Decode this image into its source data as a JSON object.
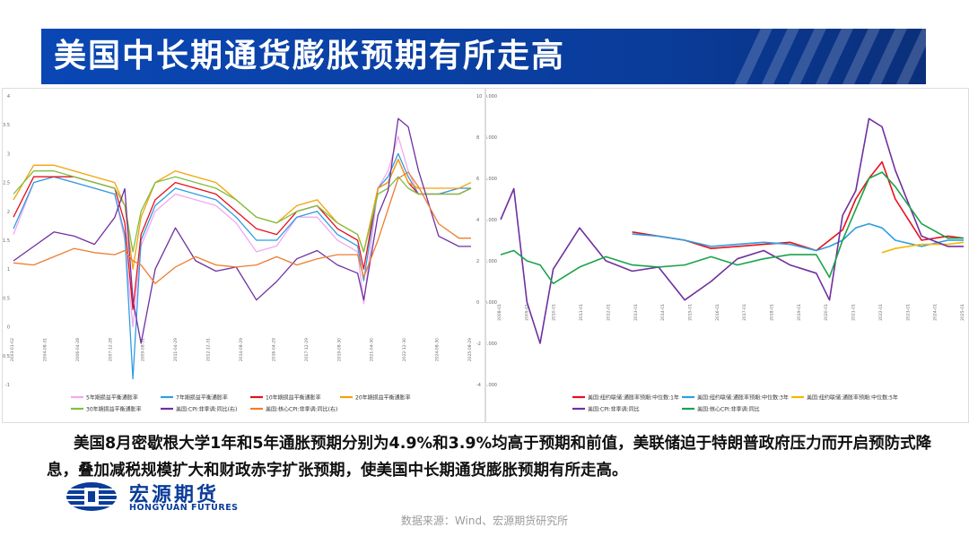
{
  "header": {
    "title": "美国中长期通货膨胀预期有所走高"
  },
  "caption": "美国8月密歇根大学1年和5年通胀预期分别为4.9%和3.9%均高于预期和前值，美联储迫于特朗普政府压力而开启预防式降息，叠加减税规模扩大和财政赤字扩张预期，使美国中长期通货膨胀预期有所走高。",
  "logo": {
    "name_cn": "宏源期货",
    "name_en": "HONGYUAN FUTURES"
  },
  "source": "数据来源：Wind、宏源期货研究所",
  "colors": {
    "title_bg": "#0a47b4",
    "logo": "#0a3c9a"
  },
  "chart_data": [
    {
      "type": "line",
      "left_axis": {
        "ticks": [
          "4",
          "3.5",
          "3",
          "2.5",
          "2",
          "1.5",
          "1",
          "0.5",
          "0",
          "-0.5",
          "-1"
        ],
        "ylim": [
          -1,
          4
        ]
      },
      "right_axis": {
        "ticks": [
          "10",
          "8",
          "6",
          "4",
          "2",
          "0",
          "-2",
          "-4"
        ],
        "ylim": [
          -4,
          10
        ]
      },
      "x_ticks": [
        "2003-01-02",
        "2004-08-31",
        "2006-04-28",
        "2007-12-28",
        "2009-08-31",
        "2011-04-29",
        "2012-12-31",
        "2014-08-29",
        "2016-04-29",
        "2017-12-29",
        "2019-08-30",
        "2021-04-30",
        "2022-12-30",
        "2024-08-30",
        "2025-08-29"
      ],
      "x": [
        2003,
        2004,
        2005,
        2006,
        2007,
        2008,
        2008.5,
        2008.9,
        2009.3,
        2010,
        2011,
        2012,
        2013,
        2014,
        2015,
        2016,
        2017,
        2018,
        2019,
        2020,
        2020.3,
        2021,
        2021.5,
        2022,
        2022.5,
        2023,
        2024,
        2025,
        2025.6
      ],
      "series": [
        {
          "name": "5年期损益平衡通胀率",
          "axis": "left",
          "color": "#f2a8f0",
          "values": [
            1.6,
            2.5,
            2.6,
            2.5,
            2.4,
            2.3,
            1.5,
            0.0,
            1.4,
            2.0,
            2.3,
            2.2,
            2.1,
            1.8,
            1.3,
            1.4,
            1.9,
            1.9,
            1.5,
            1.3,
            0.4,
            2.4,
            2.7,
            3.3,
            2.7,
            2.3,
            2.3,
            2.4,
            2.4
          ]
        },
        {
          "name": "7年期损益平衡通胀率",
          "axis": "left",
          "color": "#2e9ee0",
          "values": [
            1.7,
            2.5,
            2.6,
            2.5,
            2.4,
            2.3,
            1.6,
            -0.9,
            1.5,
            2.1,
            2.4,
            2.3,
            2.2,
            1.9,
            1.5,
            1.5,
            1.9,
            2.0,
            1.6,
            1.4,
            0.8,
            2.4,
            2.6,
            3.0,
            2.6,
            2.3,
            2.3,
            2.4,
            2.4
          ]
        },
        {
          "name": "10年期损益平衡通胀率",
          "axis": "left",
          "color": "#e8101c",
          "values": [
            1.9,
            2.6,
            2.6,
            2.6,
            2.5,
            2.4,
            1.8,
            0.3,
            1.6,
            2.2,
            2.5,
            2.4,
            2.3,
            2.0,
            1.7,
            1.6,
            2.0,
            2.1,
            1.7,
            1.5,
            1.0,
            2.4,
            2.5,
            2.9,
            2.5,
            2.3,
            2.3,
            2.3,
            2.4
          ]
        },
        {
          "name": "20年期损益平衡通胀率",
          "axis": "left",
          "color": "#f5a20a",
          "values": [
            2.2,
            2.8,
            2.8,
            2.7,
            2.6,
            2.5,
            2.1,
            1.0,
            1.9,
            2.5,
            2.7,
            2.6,
            2.5,
            2.2,
            1.9,
            1.8,
            2.1,
            2.2,
            1.8,
            1.6,
            1.3,
            2.4,
            2.5,
            2.9,
            2.5,
            2.4,
            2.4,
            2.4,
            2.5
          ]
        },
        {
          "name": "30年期损益平衡通胀率",
          "axis": "left",
          "color": "#7cc043",
          "values": [
            2.3,
            2.7,
            2.7,
            2.6,
            2.5,
            2.4,
            2.1,
            1.3,
            2.0,
            2.5,
            2.6,
            2.5,
            2.4,
            2.2,
            1.9,
            1.8,
            2.0,
            2.1,
            1.8,
            1.6,
            1.3,
            2.3,
            2.4,
            2.6,
            2.4,
            2.3,
            2.3,
            2.3,
            2.4
          ]
        },
        {
          "name": "美国:CPI:非季调:同比(右)",
          "axis": "right",
          "color": "#7030a0",
          "values": [
            2.0,
            2.7,
            3.4,
            3.2,
            2.8,
            4.1,
            5.5,
            0.1,
            -2.0,
            1.6,
            3.6,
            2.0,
            1.5,
            1.7,
            0.1,
            1.0,
            2.1,
            2.5,
            1.8,
            1.4,
            0.1,
            4.2,
            5.4,
            8.9,
            8.5,
            6.4,
            3.2,
            2.7,
            2.7
          ]
        },
        {
          "name": "美国:核心CPI:非季调:同比(右)",
          "axis": "right",
          "color": "#ed7d31",
          "values": [
            1.9,
            1.8,
            2.2,
            2.6,
            2.4,
            2.3,
            2.5,
            2.0,
            1.8,
            0.9,
            1.7,
            2.2,
            1.8,
            1.7,
            1.8,
            2.2,
            1.8,
            2.1,
            2.3,
            2.3,
            1.2,
            3.0,
            4.5,
            6.0,
            6.3,
            5.6,
            3.8,
            3.1,
            3.1
          ]
        }
      ]
    },
    {
      "type": "line",
      "left_axis": {
        "ticks": [
          "10.000",
          "8.000",
          "6.000",
          "4.000",
          "2.000",
          "0.000",
          "-2.000",
          "-4.000"
        ],
        "ylim": [
          -4,
          10
        ]
      },
      "x_ticks": [
        "2008-01",
        "2009-01",
        "2010-01",
        "2011-01",
        "2012-01",
        "2013-01",
        "2014-01",
        "2015-01",
        "2016-01",
        "2017-01",
        "2018-01",
        "2019-01",
        "2020-01",
        "2021-01",
        "2022-01",
        "2023-01",
        "2024-01",
        "2025-01"
      ],
      "x": [
        2008,
        2008.5,
        2009,
        2009.5,
        2010,
        2011,
        2012,
        2013,
        2014,
        2015,
        2016,
        2017,
        2018,
        2019,
        2020,
        2020.5,
        2021,
        2021.5,
        2022,
        2022.5,
        2023,
        2024,
        2025,
        2025.6
      ],
      "series": [
        {
          "name": "美国:纽约联储:通胀率预期:中位数:1年",
          "color": "#e8101c",
          "values": [
            null,
            null,
            null,
            null,
            null,
            null,
            null,
            3.4,
            3.2,
            3.0,
            2.6,
            2.7,
            2.8,
            2.9,
            2.5,
            3.0,
            3.5,
            5.0,
            6.0,
            6.8,
            5.0,
            3.0,
            3.2,
            3.1
          ]
        },
        {
          "name": "美国:纽约联储:通胀率预期:中位数:3年",
          "color": "#2e9ee0",
          "values": [
            null,
            null,
            null,
            null,
            null,
            null,
            null,
            3.3,
            3.2,
            3.0,
            2.7,
            2.8,
            2.9,
            2.8,
            2.5,
            2.7,
            3.0,
            3.6,
            3.8,
            3.6,
            3.0,
            2.7,
            3.0,
            3.0
          ]
        },
        {
          "name": "美国:纽约联储:通胀率预期:中位数:5年",
          "color": "#f5b800",
          "values": [
            null,
            null,
            null,
            null,
            null,
            null,
            null,
            null,
            null,
            null,
            null,
            null,
            null,
            null,
            null,
            null,
            null,
            null,
            null,
            2.4,
            2.6,
            2.8,
            2.8,
            2.9
          ]
        },
        {
          "name": "美国:CPI:非季调:同比",
          "color": "#7030a0",
          "values": [
            4.0,
            5.5,
            0.0,
            -2.0,
            1.6,
            3.6,
            2.0,
            1.5,
            1.7,
            0.1,
            1.0,
            2.1,
            2.5,
            1.8,
            1.4,
            0.1,
            4.2,
            5.4,
            8.9,
            8.5,
            6.4,
            3.2,
            2.7,
            2.7
          ]
        },
        {
          "name": "美国:核心CPI:非季调:同比",
          "color": "#1aa34a",
          "values": [
            2.3,
            2.5,
            2.0,
            1.8,
            0.9,
            1.7,
            2.2,
            1.8,
            1.7,
            1.8,
            2.2,
            1.8,
            2.1,
            2.3,
            2.3,
            1.2,
            3.0,
            4.5,
            6.0,
            6.3,
            5.6,
            3.8,
            3.1,
            3.1
          ]
        }
      ]
    }
  ]
}
